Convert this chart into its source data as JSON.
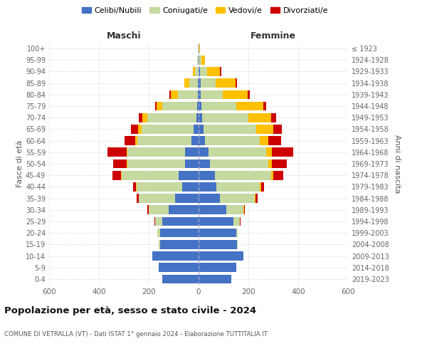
{
  "age_groups": [
    "0-4",
    "5-9",
    "10-14",
    "15-19",
    "20-24",
    "25-29",
    "30-34",
    "35-39",
    "40-44",
    "45-49",
    "50-54",
    "55-59",
    "60-64",
    "65-69",
    "70-74",
    "75-79",
    "80-84",
    "85-89",
    "90-94",
    "95-99",
    "100+"
  ],
  "birth_years": [
    "2019-2023",
    "2014-2018",
    "2009-2013",
    "2004-2008",
    "1999-2003",
    "1994-1998",
    "1989-1993",
    "1984-1988",
    "1979-1983",
    "1974-1978",
    "1969-1973",
    "1964-1968",
    "1959-1963",
    "1954-1958",
    "1949-1953",
    "1944-1948",
    "1939-1943",
    "1934-1938",
    "1929-1933",
    "1924-1928",
    "≤ 1923"
  ],
  "males": {
    "celibe": [
      145,
      160,
      185,
      155,
      155,
      145,
      120,
      95,
      65,
      80,
      55,
      55,
      30,
      20,
      10,
      5,
      2,
      2,
      0,
      0,
      0
    ],
    "coniugato": [
      0,
      0,
      0,
      5,
      10,
      30,
      80,
      145,
      185,
      230,
      230,
      230,
      215,
      210,
      195,
      140,
      80,
      35,
      15,
      5,
      2
    ],
    "vedovo": [
      0,
      0,
      0,
      0,
      0,
      0,
      0,
      0,
      2,
      2,
      3,
      5,
      8,
      12,
      20,
      25,
      30,
      20,
      8,
      2,
      0
    ],
    "divorziato": [
      0,
      0,
      0,
      0,
      0,
      3,
      5,
      10,
      12,
      35,
      55,
      75,
      45,
      30,
      15,
      5,
      5,
      0,
      0,
      0,
      0
    ]
  },
  "females": {
    "nubile": [
      130,
      150,
      180,
      155,
      150,
      140,
      110,
      85,
      70,
      65,
      45,
      40,
      25,
      20,
      15,
      10,
      8,
      8,
      5,
      2,
      0
    ],
    "coniugata": [
      0,
      0,
      0,
      2,
      8,
      25,
      70,
      140,
      175,
      225,
      235,
      230,
      220,
      210,
      185,
      140,
      90,
      60,
      30,
      10,
      2
    ],
    "vedova": [
      0,
      0,
      0,
      0,
      0,
      0,
      2,
      3,
      5,
      10,
      15,
      25,
      35,
      70,
      90,
      110,
      100,
      80,
      50,
      15,
      5
    ],
    "divorziata": [
      0,
      0,
      0,
      0,
      0,
      3,
      5,
      10,
      12,
      40,
      60,
      85,
      50,
      35,
      20,
      10,
      8,
      5,
      5,
      0,
      0
    ]
  },
  "colors": {
    "celibe": "#4472c4",
    "coniugato": "#c5d9a0",
    "vedovo": "#ffc000",
    "divorziato": "#cc0000"
  },
  "legend_labels": [
    "Celibi/Nubili",
    "Coniugati/e",
    "Vedovi/e",
    "Divorziati/e"
  ],
  "title": "Popolazione per età, sesso e stato civile - 2024",
  "subtitle": "COMUNE DI VETRALLA (VT) - Dati ISTAT 1° gennaio 2024 - Elaborazione TUTTITALIA.IT",
  "xlabel_left": "Maschi",
  "xlabel_right": "Femmine",
  "ylabel_left": "Fasce di età",
  "ylabel_right": "Anni di nascita",
  "xlim": 600,
  "bg_color": "#ffffff",
  "grid_color": "#cccccc"
}
